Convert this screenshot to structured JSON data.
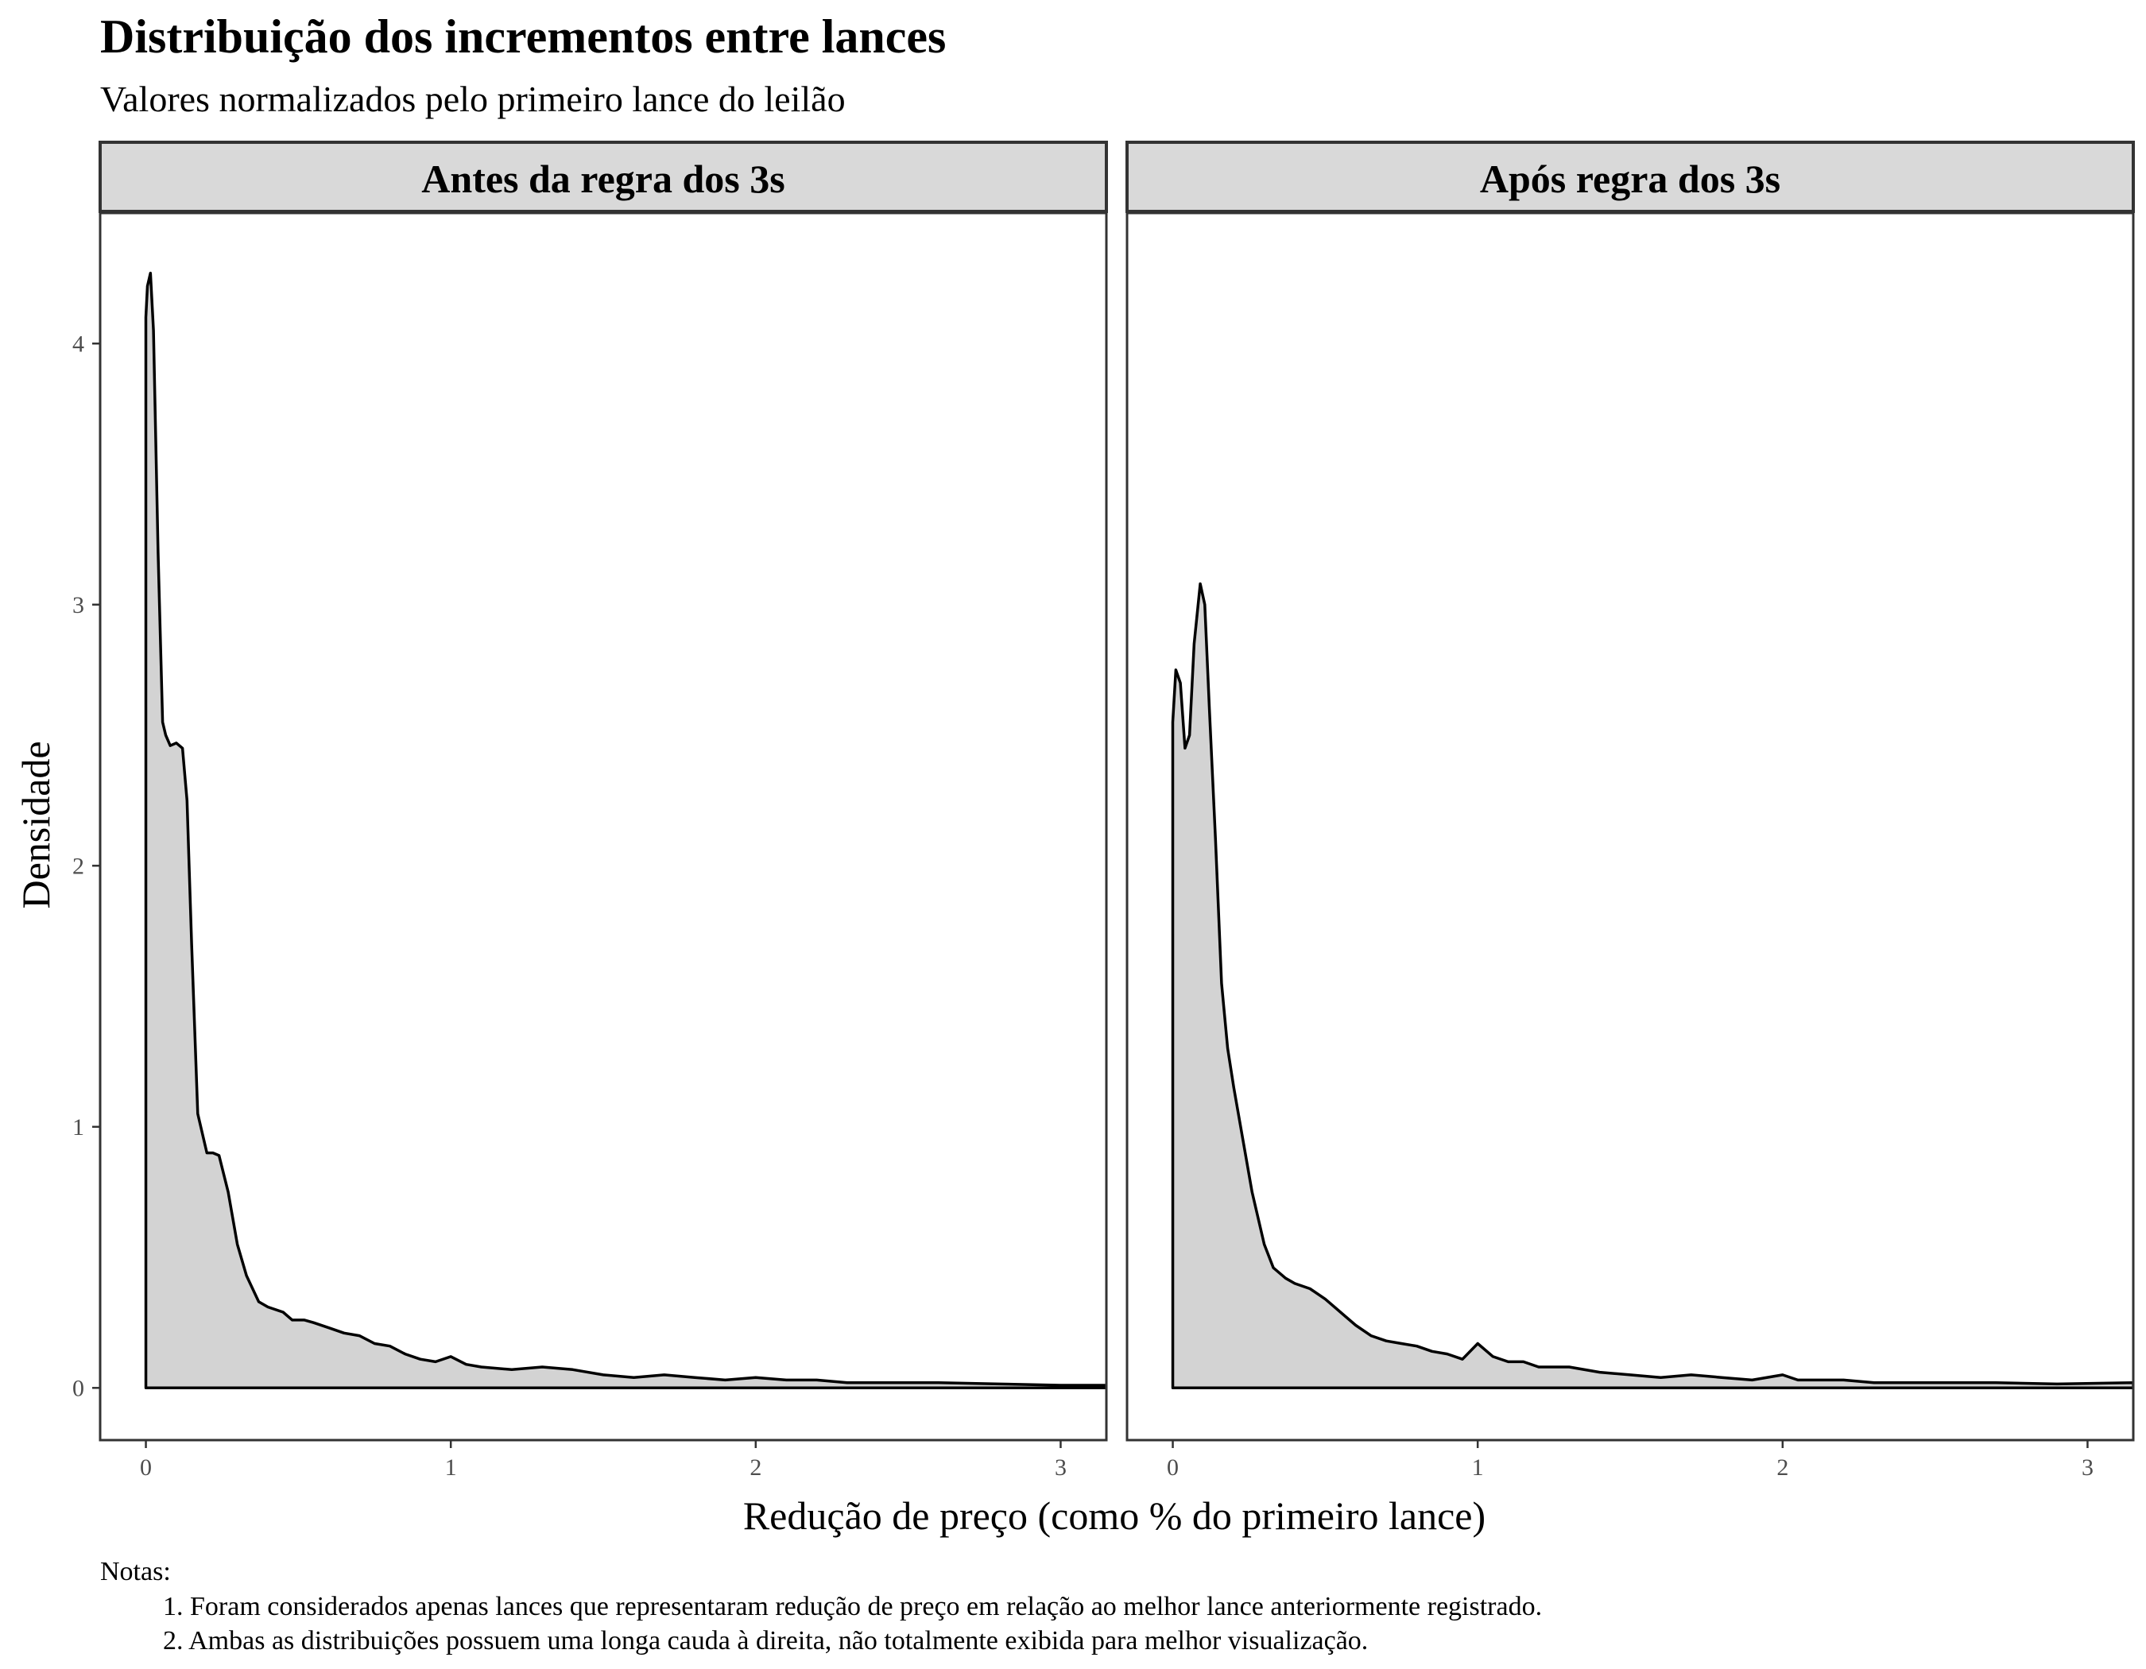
{
  "chart_data": {
    "type": "area",
    "title": "Distribuição dos incrementos entre lances",
    "subtitle": "Valores normalizados pelo primeiro lance do leilão",
    "xlabel": "Redução de preço (como % do primeiro lance)",
    "ylabel": "Densidade",
    "xlim": [
      -0.15,
      3.15
    ],
    "ylim": [
      -0.2,
      4.5
    ],
    "x_ticks": [
      0,
      1,
      2,
      3
    ],
    "y_ticks": [
      0,
      1,
      2,
      3,
      4
    ],
    "grid": false,
    "fill_color": "#d3d3d3",
    "line_color": "#000000",
    "strip_fill": "#d9d9d9",
    "panels": [
      {
        "label": "Antes da regra dos 3s",
        "x": [
          0,
          0.005,
          0.015,
          0.025,
          0.04,
          0.055,
          0.065,
          0.08,
          0.1,
          0.12,
          0.135,
          0.15,
          0.17,
          0.2,
          0.22,
          0.24,
          0.27,
          0.3,
          0.33,
          0.37,
          0.4,
          0.45,
          0.48,
          0.52,
          0.55,
          0.6,
          0.65,
          0.7,
          0.75,
          0.8,
          0.85,
          0.9,
          0.95,
          1.0,
          1.05,
          1.1,
          1.2,
          1.3,
          1.4,
          1.5,
          1.6,
          1.7,
          1.8,
          1.9,
          2.0,
          2.1,
          2.2,
          2.3,
          2.4,
          2.5,
          2.6,
          2.8,
          3.0,
          3.15
        ],
        "y": [
          4.1,
          4.22,
          4.27,
          4.05,
          3.2,
          2.55,
          2.5,
          2.46,
          2.47,
          2.45,
          2.25,
          1.7,
          1.05,
          0.9,
          0.9,
          0.89,
          0.75,
          0.55,
          0.43,
          0.33,
          0.31,
          0.29,
          0.26,
          0.26,
          0.25,
          0.23,
          0.21,
          0.2,
          0.17,
          0.16,
          0.13,
          0.11,
          0.1,
          0.12,
          0.09,
          0.08,
          0.07,
          0.08,
          0.07,
          0.05,
          0.04,
          0.05,
          0.04,
          0.03,
          0.04,
          0.03,
          0.03,
          0.02,
          0.02,
          0.02,
          0.02,
          0.015,
          0.01,
          0.01
        ]
      },
      {
        "label": "Após regra dos 3s",
        "x": [
          0,
          0.01,
          0.025,
          0.04,
          0.055,
          0.07,
          0.09,
          0.105,
          0.12,
          0.14,
          0.16,
          0.18,
          0.2,
          0.23,
          0.26,
          0.3,
          0.33,
          0.37,
          0.4,
          0.45,
          0.5,
          0.55,
          0.6,
          0.65,
          0.7,
          0.75,
          0.8,
          0.85,
          0.9,
          0.95,
          1.0,
          1.05,
          1.1,
          1.15,
          1.2,
          1.3,
          1.4,
          1.5,
          1.6,
          1.7,
          1.8,
          1.9,
          2.0,
          2.05,
          2.1,
          2.2,
          2.3,
          2.5,
          2.6,
          2.7,
          2.9,
          3.15
        ],
        "y": [
          2.55,
          2.75,
          2.7,
          2.45,
          2.5,
          2.85,
          3.08,
          3.0,
          2.6,
          2.1,
          1.55,
          1.3,
          1.15,
          0.95,
          0.75,
          0.55,
          0.46,
          0.42,
          0.4,
          0.38,
          0.34,
          0.29,
          0.24,
          0.2,
          0.18,
          0.17,
          0.16,
          0.14,
          0.13,
          0.11,
          0.17,
          0.12,
          0.1,
          0.1,
          0.08,
          0.08,
          0.06,
          0.05,
          0.04,
          0.05,
          0.04,
          0.03,
          0.05,
          0.03,
          0.03,
          0.03,
          0.02,
          0.02,
          0.02,
          0.02,
          0.015,
          0.02
        ]
      }
    ]
  },
  "notes": {
    "heading": "Notas:",
    "items": [
      "1. Foram considerados apenas lances que representaram redução de preço em relação ao melhor lance anteriormente registrado.",
      "2. Ambas as distribuições possuem uma longa cauda à direita, não totalmente exibida para melhor visualização."
    ]
  }
}
